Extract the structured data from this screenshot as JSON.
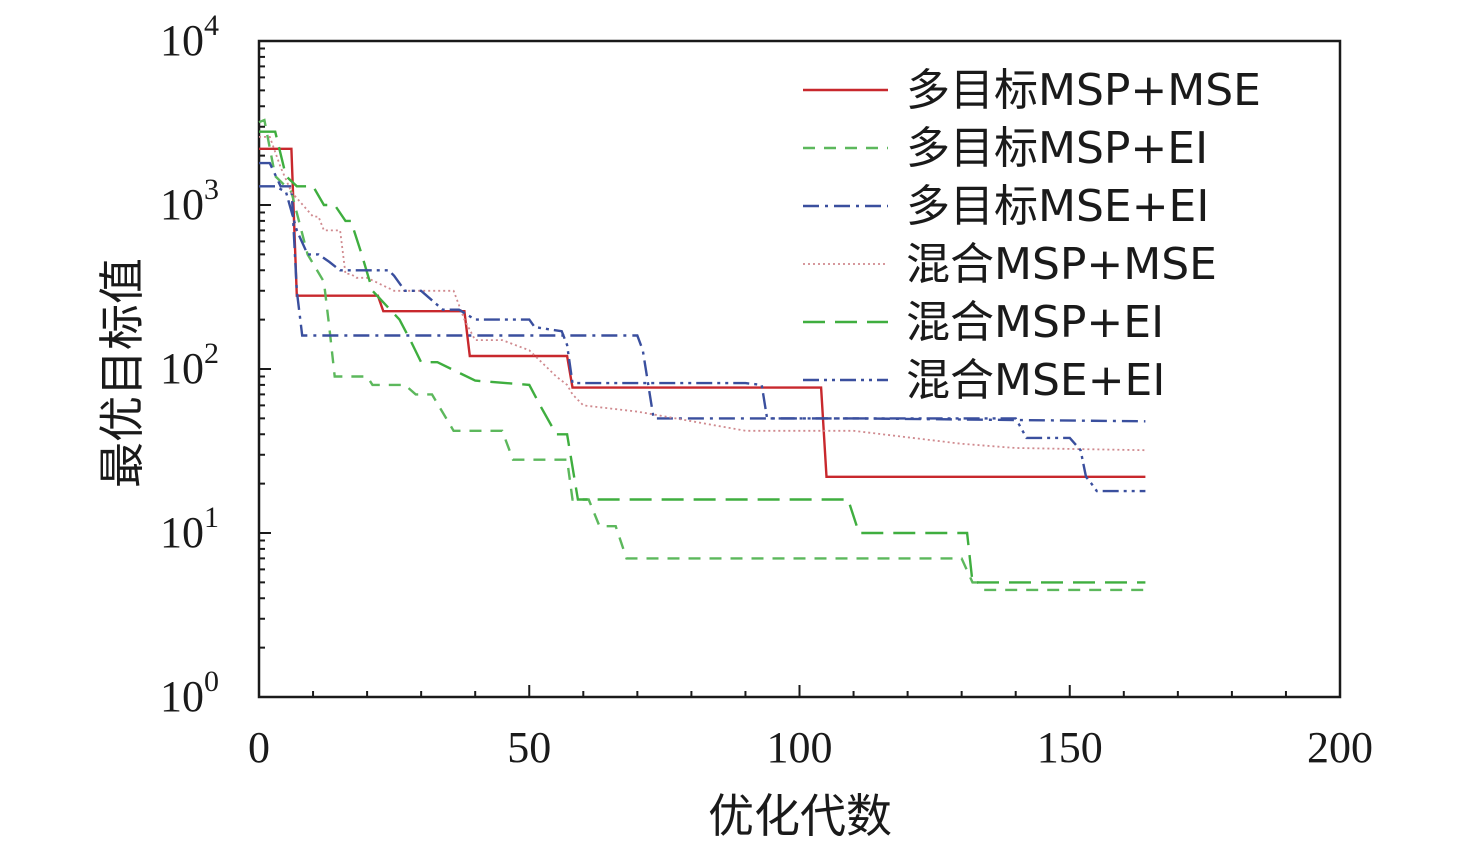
{
  "chart_data": {
    "type": "line",
    "xlabel": "优化代数",
    "ylabel": "最优目标值",
    "xlim": [
      0,
      200
    ],
    "ylim": [
      1,
      10000
    ],
    "yscale": "log",
    "grid": false,
    "legend_position": "top-right",
    "x_ticks": [
      "0",
      "50",
      "100",
      "150",
      "200"
    ],
    "y_ticks": [
      {
        "base": "10",
        "exp": "0"
      },
      {
        "base": "10",
        "exp": "1"
      },
      {
        "base": "10",
        "exp": "2"
      },
      {
        "base": "10",
        "exp": "3"
      },
      {
        "base": "10",
        "exp": "4"
      }
    ],
    "series": [
      {
        "name": "多目标MSP+MSE",
        "color": "#c8282d",
        "dash": "solid",
        "x": [
          0,
          6,
          7,
          22,
          23,
          38,
          39,
          57,
          58,
          104,
          105,
          164
        ],
        "y": [
          2200,
          2200,
          280,
          280,
          225,
          225,
          120,
          120,
          77,
          77,
          22,
          22
        ]
      },
      {
        "name": "多目标MSP+EI",
        "color": "#5cb85c",
        "dash": "short-dash",
        "x": [
          0,
          1,
          3,
          6,
          9,
          12,
          13,
          14,
          20,
          21,
          22,
          25,
          27,
          29,
          32,
          36,
          38,
          45,
          47,
          50,
          57,
          58,
          61,
          63,
          66,
          68,
          100,
          130,
          132,
          133,
          134,
          164
        ],
        "y": [
          3200,
          3300,
          1500,
          1200,
          500,
          340,
          180,
          90,
          90,
          80,
          80,
          80,
          80,
          70,
          70,
          42,
          42,
          42,
          28,
          28,
          28,
          16,
          16,
          11,
          11,
          7,
          7,
          7,
          5,
          5,
          4.5,
          4.5
        ]
      },
      {
        "name": "多目标MSE+EI",
        "color": "#3a4f9e",
        "dash": "dash-dot",
        "x": [
          0,
          2,
          4,
          6,
          7,
          8,
          9,
          25,
          42,
          45,
          50,
          56,
          60,
          70,
          71,
          73,
          80,
          100,
          105,
          110,
          164
        ],
        "y": [
          1800,
          1800,
          1300,
          1300,
          300,
          160,
          160,
          160,
          160,
          160,
          160,
          160,
          160,
          160,
          130,
          50,
          50,
          50,
          50,
          50,
          48
        ]
      },
      {
        "name": "混合MSP+MSE",
        "color": "#d08a8f",
        "dash": "dotted",
        "x": [
          0,
          2,
          4,
          6,
          10,
          11,
          12,
          15,
          16,
          17,
          18,
          20,
          25,
          30,
          35,
          36,
          38,
          40,
          45,
          50,
          55,
          57,
          58,
          60,
          70,
          90,
          100,
          110,
          130,
          140,
          164
        ],
        "y": [
          2600,
          2600,
          1700,
          1200,
          850,
          850,
          700,
          700,
          380,
          380,
          360,
          360,
          300,
          300,
          300,
          300,
          200,
          150,
          150,
          130,
          90,
          80,
          70,
          60,
          55,
          42,
          42,
          42,
          35,
          33,
          32
        ]
      },
      {
        "name": "混合MSP+EI",
        "color": "#3fae3f",
        "dash": "long-dash",
        "x": [
          0,
          3,
          5,
          7,
          10,
          12,
          14,
          16,
          17,
          19,
          21,
          26,
          28,
          30,
          33,
          40,
          50,
          52,
          55,
          57,
          59,
          70,
          100,
          109,
          111,
          120,
          131,
          132,
          134,
          164
        ],
        "y": [
          2800,
          2800,
          1500,
          1300,
          1300,
          1000,
          1000,
          800,
          800,
          500,
          300,
          200,
          150,
          110,
          110,
          85,
          80,
          60,
          40,
          40,
          16,
          16,
          16,
          16,
          10,
          10,
          10,
          5,
          5,
          5
        ]
      },
      {
        "name": "混合MSE+EI",
        "color": "#3a4f9e",
        "dash": "dash-dot-dot",
        "x": [
          0,
          3,
          5,
          7,
          9,
          11,
          13,
          15,
          20,
          24,
          25,
          27,
          30,
          34,
          37,
          40,
          45,
          50,
          51,
          56,
          57,
          58,
          60,
          70,
          90,
          93,
          94,
          95,
          100,
          140,
          142,
          150,
          152,
          153,
          154,
          155,
          164
        ],
        "y": [
          1300,
          1300,
          1200,
          700,
          500,
          500,
          450,
          400,
          400,
          400,
          370,
          300,
          300,
          230,
          230,
          200,
          200,
          200,
          180,
          170,
          140,
          82,
          82,
          82,
          82,
          80,
          50,
          50,
          50,
          50,
          38,
          38,
          32,
          22,
          20,
          18,
          18
        ]
      }
    ]
  }
}
